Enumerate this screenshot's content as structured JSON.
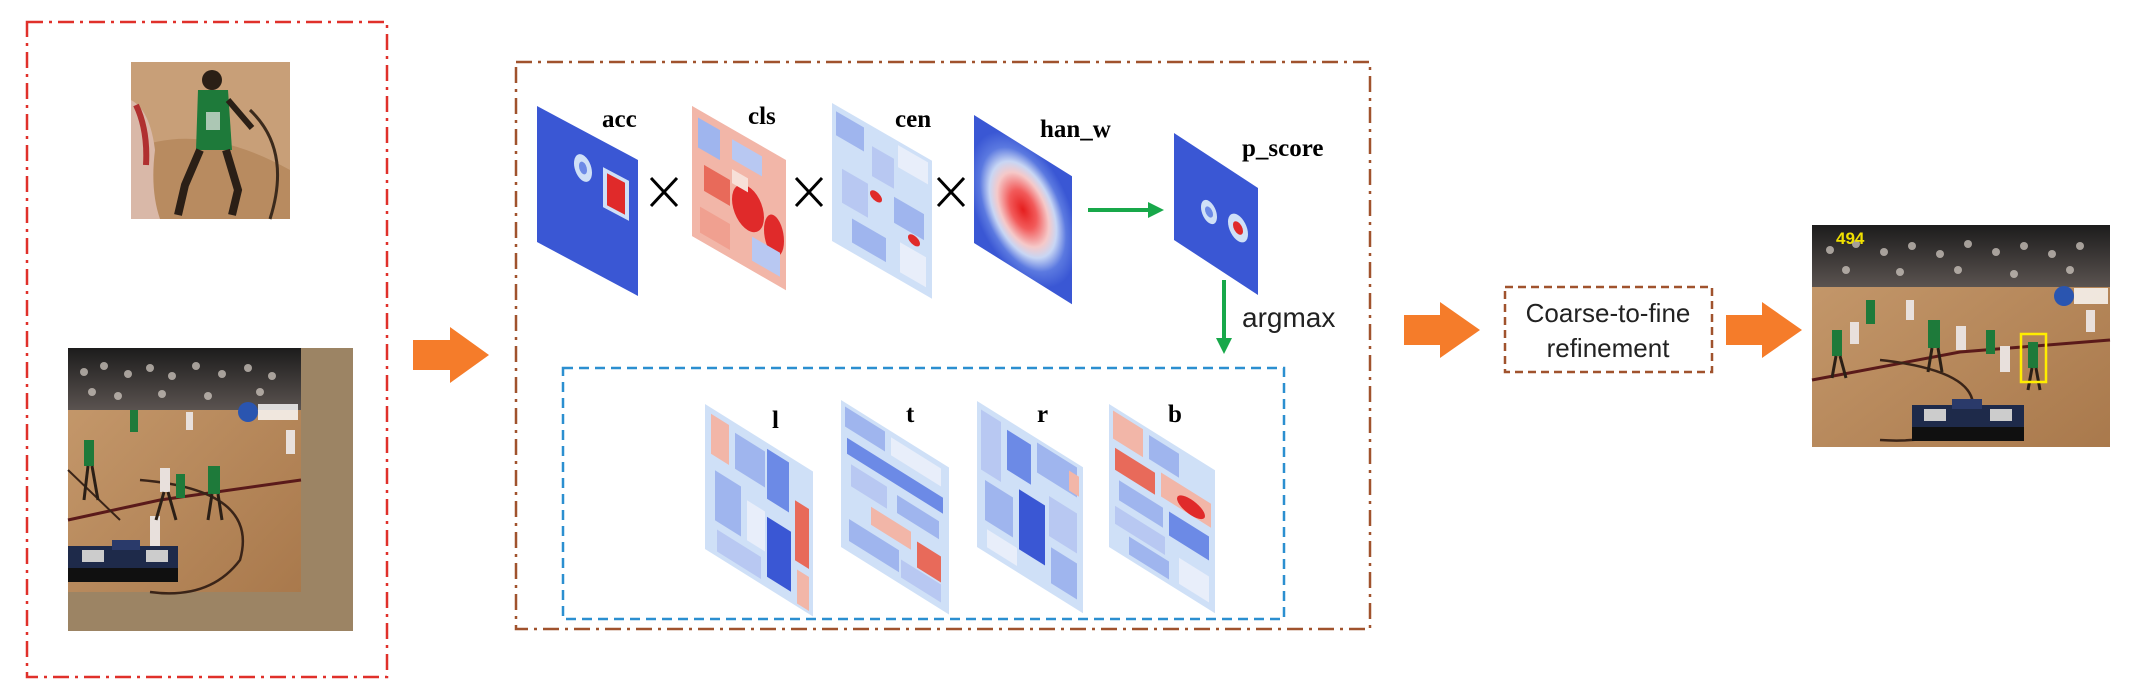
{
  "colors": {
    "template_border": "#e0302a",
    "pipeline_border": "#a0522d",
    "regression_border": "#2b8fd0",
    "refine_border": "#a0522d",
    "process_arrow": "#f57c2a",
    "flow_arrow": "#18a84a",
    "map_blue": "#3a57d4",
    "map_red": "#e02a2a",
    "map_light": "#cfe0f7",
    "court_wood": "#b98a5c",
    "padding_brown": "#9c8464",
    "crowd": "#2a2a2a",
    "jersey_green": "#1e7a3a",
    "box_yellow": "#ffee00"
  },
  "maps": {
    "acc": {
      "label": "acc",
      "icon": "heatmap-acc-icon"
    },
    "cls": {
      "label": "cls",
      "icon": "heatmap-cls-icon"
    },
    "cen": {
      "label": "cen",
      "icon": "heatmap-cen-icon"
    },
    "han_w": {
      "label": "han_w",
      "icon": "heatmap-hanning-icon"
    },
    "p_score": {
      "label": "p_score",
      "icon": "heatmap-score-icon"
    }
  },
  "regression_maps": {
    "l": {
      "label": "l"
    },
    "t": {
      "label": "t"
    },
    "r": {
      "label": "r"
    },
    "b": {
      "label": "b"
    }
  },
  "argmax_label": "argmax",
  "refinement": {
    "line1": "Coarse-to-fine",
    "line2": "refinement"
  },
  "result_frame": {
    "score_text": "494"
  }
}
